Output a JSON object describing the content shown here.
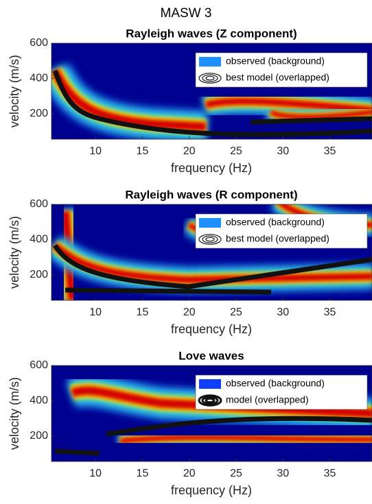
{
  "title": "MASW 3",
  "chart_data": [
    {
      "type": "heatmap",
      "title": "Rayleigh waves (Z component)",
      "xlabel": "frequency (Hz)",
      "ylabel": "velocity (m/s)",
      "xlim": [
        5.3,
        39.5
      ],
      "ylim": [
        55,
        600
      ],
      "xticks": [
        10,
        15,
        20,
        25,
        30,
        35
      ],
      "yticks": [
        200,
        400,
        600
      ],
      "legend": [
        "observed (background)",
        "best model (overlapped)"
      ]
    },
    {
      "type": "heatmap",
      "title": "Rayleigh waves (R component)",
      "xlabel": "frequency (Hz)",
      "ylabel": "velocity (m/s)",
      "xlim": [
        5.3,
        39.5
      ],
      "ylim": [
        55,
        600
      ],
      "xticks": [
        10,
        15,
        20,
        25,
        30,
        35
      ],
      "yticks": [
        200,
        400,
        600
      ],
      "legend": [
        "observed (background)",
        "best model (overlapped)"
      ]
    },
    {
      "type": "heatmap",
      "title": "Love waves",
      "xlabel": "frequency (Hz)",
      "ylabel": "velocity (m/s)",
      "xlim": [
        5.3,
        39.5
      ],
      "ylim": [
        55,
        600
      ],
      "xticks": [
        10,
        15,
        20,
        25,
        30,
        35
      ],
      "yticks": [
        200,
        400,
        600
      ],
      "legend": [
        "observed (background)",
        "model (overlapped)"
      ]
    }
  ]
}
